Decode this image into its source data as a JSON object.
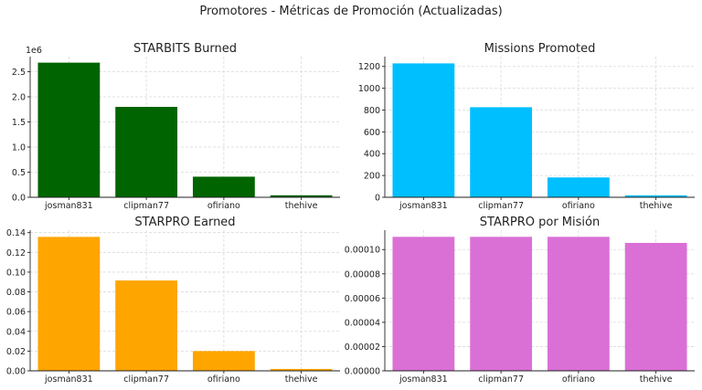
{
  "figure_title": "Promotores - Métricas de Promoción (Actualizadas)",
  "chart_data": [
    {
      "type": "bar",
      "title": "STARBITS Burned",
      "categories": [
        "josman831",
        "clipman77",
        "ofiriano",
        "thehive"
      ],
      "values": [
        2680000,
        1800000,
        410000,
        40000
      ],
      "ylim": [
        0,
        2800000
      ],
      "yticks": [
        0,
        500000,
        1000000,
        1500000,
        2000000,
        2500000
      ],
      "ytick_labels": [
        "0.0",
        "0.5",
        "1.0",
        "1.5",
        "2.0",
        "2.5"
      ],
      "offset_text": "1e6",
      "color": "#006400",
      "grid": true,
      "xlabel": "",
      "ylabel": ""
    },
    {
      "type": "bar",
      "title": "Missions Promoted",
      "categories": [
        "josman831",
        "clipman77",
        "ofiriano",
        "thehive"
      ],
      "values": [
        1228,
        826,
        182,
        18
      ],
      "ylim": [
        0,
        1290
      ],
      "yticks": [
        0,
        200,
        400,
        600,
        800,
        1000,
        1200
      ],
      "ytick_labels": [
        "0",
        "200",
        "400",
        "600",
        "800",
        "1000",
        "1200"
      ],
      "offset_text": "",
      "color": "#00BFFF",
      "grid": true,
      "xlabel": "",
      "ylabel": ""
    },
    {
      "type": "bar",
      "title": "STARPRO Earned",
      "categories": [
        "josman831",
        "clipman77",
        "ofiriano",
        "thehive"
      ],
      "values": [
        0.1357,
        0.0915,
        0.02,
        0.0019
      ],
      "ylim": [
        0,
        0.1425
      ],
      "yticks": [
        0,
        0.02,
        0.04,
        0.06,
        0.08,
        0.1,
        0.12,
        0.14
      ],
      "ytick_labels": [
        "0.00",
        "0.02",
        "0.04",
        "0.06",
        "0.08",
        "0.10",
        "0.12",
        "0.14"
      ],
      "offset_text": "",
      "color": "#FFA500",
      "grid": true,
      "xlabel": "",
      "ylabel": ""
    },
    {
      "type": "bar",
      "title": "STARPRO por Misión",
      "categories": [
        "josman831",
        "clipman77",
        "ofiriano",
        "thehive"
      ],
      "values": [
        0.0001105,
        0.0001105,
        0.0001105,
        0.0001055
      ],
      "ylim": [
        0,
        0.000116
      ],
      "yticks": [
        0,
        2e-05,
        4e-05,
        6e-05,
        8e-05,
        0.0001
      ],
      "ytick_labels": [
        "0.00000",
        "0.00002",
        "0.00004",
        "0.00006",
        "0.00008",
        "0.00010"
      ],
      "offset_text": "",
      "color": "#DA70D6",
      "grid": true,
      "xlabel": "",
      "ylabel": ""
    }
  ]
}
